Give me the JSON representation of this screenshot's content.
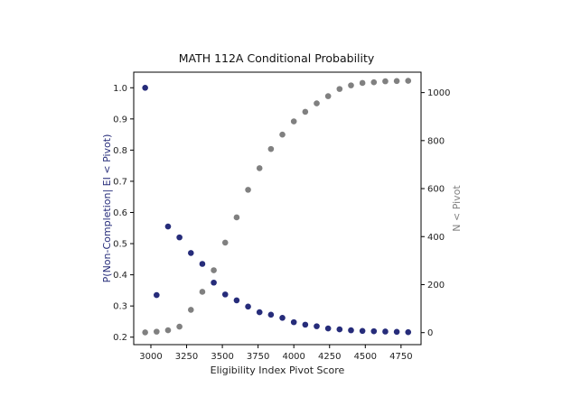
{
  "chart_data": {
    "type": "scatter",
    "title": "MATH 112A Conditional Probability",
    "xlabel": "Eligibility Index Pivot Score",
    "ylabel_left": "P(Non-Completion| EI < Pivot)",
    "ylabel_right": "N < Pivot",
    "xlim": [
      2880,
      4890
    ],
    "ylim_left": [
      0.176,
      1.05
    ],
    "ylim_right": [
      -50,
      1085
    ],
    "x_ticks": [
      "3000",
      "3250",
      "3500",
      "3750",
      "4000",
      "4250",
      "4500",
      "4750"
    ],
    "x_tick_values": [
      3000,
      3250,
      3500,
      3750,
      4000,
      4250,
      4500,
      4750
    ],
    "y_left_ticks": [
      "0.2",
      "0.3",
      "0.4",
      "0.5",
      "0.6",
      "0.7",
      "0.8",
      "0.9",
      "1.0"
    ],
    "y_left_tick_values": [
      0.2,
      0.3,
      0.4,
      0.5,
      0.6,
      0.7,
      0.8,
      0.9,
      1.0
    ],
    "y_right_ticks": [
      "0",
      "200",
      "400",
      "600",
      "800",
      "1000"
    ],
    "y_right_tick_values": [
      0,
      200,
      400,
      600,
      800,
      1000
    ],
    "grid": false,
    "colors": {
      "probability": "#262c7a",
      "count": "#808080"
    },
    "series": [
      {
        "axis": "left",
        "x": [
          2960,
          3040,
          3120,
          3200,
          3280,
          3360,
          3440,
          3520,
          3600,
          3680,
          3760,
          3840,
          3920,
          4000,
          4080,
          4160,
          4240,
          4320,
          4400,
          4480,
          4560,
          4640,
          4720,
          4800
        ],
        "values": [
          1.0,
          0.335,
          0.555,
          0.52,
          0.47,
          0.435,
          0.375,
          0.337,
          0.318,
          0.298,
          0.28,
          0.272,
          0.262,
          0.248,
          0.24,
          0.235,
          0.228,
          0.225,
          0.222,
          0.22,
          0.219,
          0.218,
          0.217,
          0.216
        ]
      },
      {
        "axis": "right",
        "x": [
          2960,
          3040,
          3120,
          3200,
          3280,
          3360,
          3440,
          3520,
          3600,
          3680,
          3760,
          3840,
          3920,
          4000,
          4080,
          4160,
          4240,
          4320,
          4400,
          4480,
          4560,
          4640,
          4720,
          4800
        ],
        "values": [
          1,
          4,
          10,
          25,
          95,
          170,
          260,
          375,
          480,
          595,
          685,
          765,
          825,
          880,
          920,
          955,
          985,
          1015,
          1030,
          1040,
          1043,
          1047,
          1048,
          1049
        ]
      }
    ]
  }
}
